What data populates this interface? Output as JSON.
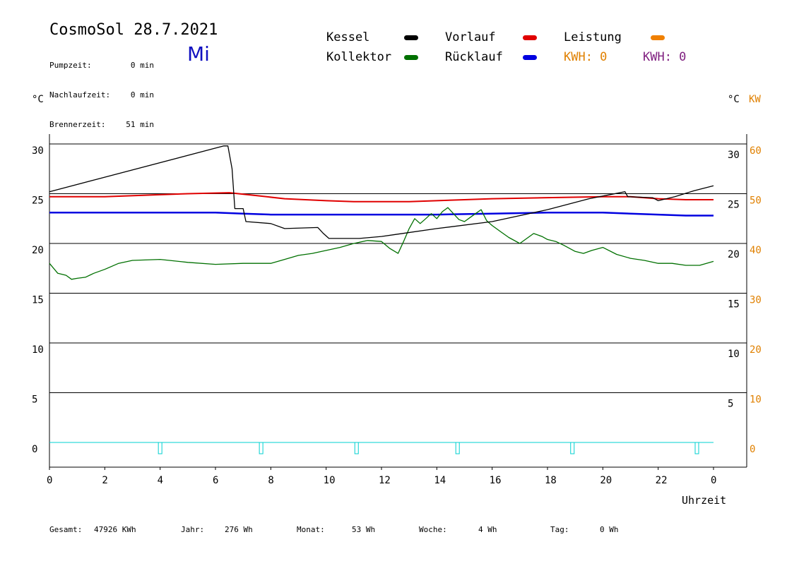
{
  "header": {
    "title": "CosmoSol 28.7.2021",
    "day": "Mi",
    "stats": [
      {
        "label": "Pumpzeit:",
        "value": "0 min"
      },
      {
        "label": "Nachlaufzeit:",
        "value": "0 min"
      },
      {
        "label": "Brennerzeit:",
        "value": "51 min"
      }
    ]
  },
  "legend": {
    "kessel": "Kessel",
    "kollektor": "Kollektor",
    "vorlauf": "Vorlauf",
    "ruecklauf": "Rücklauf",
    "leistung": "Leistung",
    "kwh1": "KWH: 0",
    "kwh2": "KWH: 0"
  },
  "colors": {
    "kessel": "#000000",
    "kollektor": "#007000",
    "vorlauf": "#e00000",
    "ruecklauf": "#0000e0",
    "leistung": "#f08000",
    "kwh1": "#e08000",
    "kwh2": "#802080",
    "pump": "#00d0d0"
  },
  "axes": {
    "left_unit": "°C",
    "right_unit": "°C",
    "right_unit2": "KW",
    "xlabel": "Uhrzeit"
  },
  "footer": [
    {
      "label": "Gesamt:",
      "value": "47926 KWh"
    },
    {
      "label": "Jahr:",
      "value": "276 Wh"
    },
    {
      "label": "Monat:",
      "value": "53 Wh"
    },
    {
      "label": "Woche:",
      "value": "4 Wh"
    },
    {
      "label": "Tag:",
      "value": "0 Wh"
    }
  ],
  "chart_data": {
    "type": "line",
    "xlabel": "Uhrzeit",
    "ylabel": "°C",
    "xlim": [
      0,
      24
    ],
    "ylim": [
      -2.5,
      31
    ],
    "x_ticks": [
      "0",
      "2",
      "4",
      "6",
      "8",
      "10",
      "12",
      "14",
      "16",
      "18",
      "20",
      "22",
      "0"
    ],
    "y_ticks_left": [
      0,
      5,
      10,
      15,
      20,
      25,
      30
    ],
    "y_ticks_right": [
      5,
      10,
      15,
      20,
      25,
      30
    ],
    "y_ticks_right_kw": [
      0,
      10,
      20,
      30,
      40,
      50,
      60
    ],
    "grid": true,
    "series": [
      {
        "name": "Kessel",
        "key": "kessel",
        "x": [
          0,
          6.3,
          6.45,
          6.6,
          6.7,
          7.0,
          7.1,
          8.0,
          8.5,
          9.7,
          9.9,
          10.1,
          11.2,
          12.0,
          12.5,
          14.0,
          16.0,
          18.0,
          19.5,
          20.8,
          20.9,
          21.8,
          22.0,
          22.6,
          23.3,
          24.0
        ],
        "y": [
          25.2,
          29.8,
          29.8,
          27.5,
          23.5,
          23.5,
          22.2,
          22.0,
          21.5,
          21.6,
          21.0,
          20.5,
          20.5,
          20.7,
          20.9,
          21.5,
          22.2,
          23.4,
          24.5,
          25.2,
          24.7,
          24.6,
          24.3,
          24.7,
          25.3,
          25.8
        ]
      },
      {
        "name": "Vorlauf",
        "key": "vorlauf",
        "x": [
          0,
          2,
          4,
          5,
          6.5,
          7.5,
          8.5,
          10,
          11,
          12,
          13,
          14,
          15,
          16,
          18,
          20,
          21,
          22,
          23,
          24
        ],
        "y": [
          24.7,
          24.7,
          24.9,
          25.0,
          25.1,
          24.8,
          24.5,
          24.3,
          24.2,
          24.2,
          24.2,
          24.3,
          24.4,
          24.5,
          24.6,
          24.7,
          24.7,
          24.5,
          24.4,
          24.4
        ]
      },
      {
        "name": "Rücklauf",
        "key": "ruecklauf",
        "x": [
          0,
          2,
          4,
          6,
          7,
          8,
          10,
          12,
          14,
          16,
          18,
          20,
          22,
          23,
          24
        ],
        "y": [
          23.1,
          23.1,
          23.1,
          23.1,
          23.0,
          22.9,
          22.9,
          22.9,
          22.9,
          23.0,
          23.1,
          23.1,
          22.9,
          22.8,
          22.8
        ]
      },
      {
        "name": "Kollektor",
        "key": "kollektor",
        "x": [
          0,
          0.3,
          0.6,
          0.8,
          1.0,
          1.3,
          1.6,
          2.0,
          2.5,
          3.0,
          4.0,
          5.0,
          6.0,
          7.0,
          8.0,
          8.5,
          9.0,
          9.5,
          10.0,
          10.5,
          11.0,
          11.5,
          12.0,
          12.3,
          12.6,
          12.8,
          13.0,
          13.2,
          13.4,
          13.6,
          13.8,
          14.0,
          14.2,
          14.4,
          14.6,
          14.8,
          15.0,
          15.2,
          15.4,
          15.6,
          15.8,
          16.0,
          16.3,
          16.6,
          17.0,
          17.3,
          17.5,
          17.8,
          18.0,
          18.3,
          18.6,
          19.0,
          19.3,
          19.6,
          20.0,
          20.5,
          21.0,
          21.5,
          22.0,
          22.5,
          23.0,
          23.5,
          24.0
        ],
        "y": [
          18.0,
          17.0,
          16.8,
          16.4,
          16.5,
          16.6,
          17.0,
          17.4,
          18.0,
          18.3,
          18.4,
          18.1,
          17.9,
          18.0,
          18.0,
          18.4,
          18.8,
          19.0,
          19.3,
          19.6,
          20.0,
          20.3,
          20.2,
          19.5,
          19.0,
          20.2,
          21.5,
          22.5,
          22.0,
          22.5,
          23.0,
          22.5,
          23.2,
          23.6,
          23.0,
          22.4,
          22.2,
          22.6,
          23.0,
          23.4,
          22.3,
          21.8,
          21.2,
          20.6,
          20.0,
          20.6,
          21.0,
          20.7,
          20.4,
          20.2,
          19.8,
          19.2,
          19.0,
          19.3,
          19.6,
          18.9,
          18.5,
          18.3,
          18.0,
          18.0,
          17.8,
          17.8,
          18.2
        ]
      }
    ],
    "pump_marks_x": [
      4.0,
      7.65,
      11.1,
      14.75,
      18.9,
      23.4
    ]
  }
}
